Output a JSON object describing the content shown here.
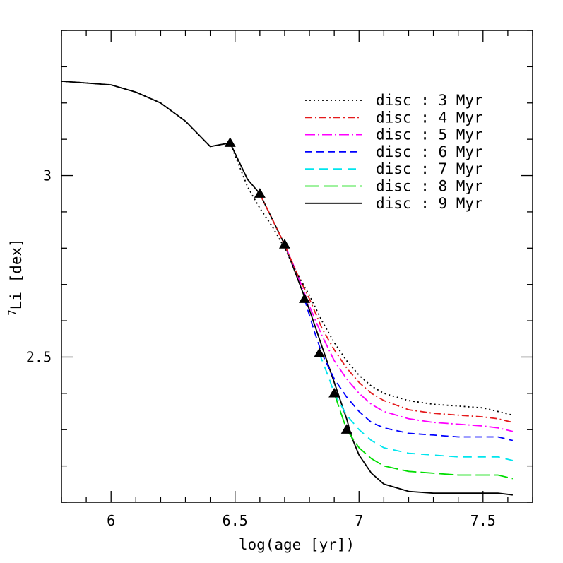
{
  "chart_data": {
    "type": "line",
    "xlabel": "log(age [yr])",
    "ylabel": "7Li [dex]",
    "ylabel_super": "7",
    "ylabel_main": "Li [dex]",
    "xlim": [
      5.8,
      7.7
    ],
    "ylim": [
      2.1,
      3.4
    ],
    "x_ticks": [
      6,
      6.5,
      7,
      7.5
    ],
    "x_tick_labels": [
      "6",
      "6.5",
      "7",
      "7.5"
    ],
    "y_ticks": [
      2.5,
      3
    ],
    "y_tick_labels": [
      "2.5",
      "3"
    ],
    "x_minor_step": 0.1,
    "y_minor_step": 0.1,
    "grid": false,
    "legend": "top-right",
    "series": [
      {
        "name": "disc : 3 Myr",
        "color": "#000000",
        "dash": "2,4",
        "x": [
          5.8,
          6.0,
          6.1,
          6.2,
          6.3,
          6.4,
          6.48,
          6.55,
          6.6,
          6.65,
          6.7,
          6.75,
          6.8,
          6.85,
          6.9,
          6.95,
          7.0,
          7.05,
          7.1,
          7.2,
          7.3,
          7.4,
          7.5,
          7.56,
          7.62
        ],
        "y": [
          3.26,
          3.25,
          3.23,
          3.2,
          3.15,
          3.08,
          3.09,
          2.97,
          2.91,
          2.86,
          2.8,
          2.73,
          2.67,
          2.6,
          2.54,
          2.49,
          2.45,
          2.42,
          2.4,
          2.38,
          2.37,
          2.365,
          2.36,
          2.35,
          2.34
        ]
      },
      {
        "name": "disc : 4 Myr",
        "color": "#e41a1c",
        "dash": "10,4,2,4",
        "x": [
          6.6,
          6.65,
          6.7,
          6.75,
          6.8,
          6.85,
          6.9,
          6.95,
          7.0,
          7.05,
          7.1,
          7.2,
          7.3,
          7.4,
          7.5,
          7.56,
          7.62
        ],
        "y": [
          2.95,
          2.88,
          2.81,
          2.73,
          2.66,
          2.58,
          2.52,
          2.47,
          2.43,
          2.4,
          2.38,
          2.355,
          2.345,
          2.34,
          2.335,
          2.33,
          2.32
        ]
      },
      {
        "name": "disc : 5 Myr",
        "color": "#ff00ff",
        "dash": "14,4,2,4",
        "x": [
          6.7,
          6.75,
          6.8,
          6.85,
          6.9,
          6.95,
          7.0,
          7.05,
          7.1,
          7.2,
          7.3,
          7.4,
          7.5,
          7.56,
          7.62
        ],
        "y": [
          2.81,
          2.73,
          2.64,
          2.56,
          2.49,
          2.44,
          2.4,
          2.37,
          2.35,
          2.33,
          2.32,
          2.315,
          2.31,
          2.305,
          2.295
        ]
      },
      {
        "name": "disc : 6 Myr",
        "color": "#0000ff",
        "dash": "10,6",
        "x": [
          6.78,
          6.82,
          6.85,
          6.9,
          6.95,
          7.0,
          7.05,
          7.1,
          7.2,
          7.3,
          7.4,
          7.5,
          7.56,
          7.62
        ],
        "y": [
          2.66,
          2.57,
          2.51,
          2.44,
          2.39,
          2.35,
          2.32,
          2.305,
          2.29,
          2.285,
          2.28,
          2.28,
          2.28,
          2.27
        ]
      },
      {
        "name": "disc : 7 Myr",
        "color": "#00e5ee",
        "dash": "12,8",
        "x": [
          6.84,
          6.88,
          6.9,
          6.95,
          7.0,
          7.05,
          7.1,
          7.2,
          7.3,
          7.4,
          7.5,
          7.56,
          7.62
        ],
        "y": [
          2.51,
          2.44,
          2.4,
          2.34,
          2.3,
          2.27,
          2.25,
          2.235,
          2.23,
          2.225,
          2.225,
          2.225,
          2.215
        ]
      },
      {
        "name": "disc : 8 Myr",
        "color": "#00dd00",
        "dash": "20,6",
        "x": [
          6.9,
          6.93,
          6.95,
          7.0,
          7.05,
          7.1,
          7.2,
          7.3,
          7.4,
          7.5,
          7.56,
          7.62
        ],
        "y": [
          2.4,
          2.34,
          2.3,
          2.25,
          2.22,
          2.2,
          2.185,
          2.18,
          2.175,
          2.175,
          2.175,
          2.165
        ]
      },
      {
        "name": "disc : 9 Myr",
        "color": "#000000",
        "dash": "",
        "x": [
          5.8,
          6.0,
          6.1,
          6.2,
          6.3,
          6.4,
          6.48,
          6.55,
          6.6,
          6.65,
          6.7,
          6.75,
          6.8,
          6.85,
          6.9,
          6.95,
          6.97,
          7.0,
          7.05,
          7.1,
          7.2,
          7.3,
          7.4,
          7.5,
          7.56,
          7.62
        ],
        "y": [
          3.26,
          3.25,
          3.23,
          3.2,
          3.15,
          3.08,
          3.09,
          2.99,
          2.95,
          2.88,
          2.81,
          2.72,
          2.63,
          2.53,
          2.43,
          2.33,
          2.28,
          2.23,
          2.18,
          2.15,
          2.13,
          2.125,
          2.125,
          2.125,
          2.125,
          2.12
        ]
      }
    ],
    "markers": {
      "shape": "triangle",
      "color": "#000000",
      "x": [
        6.48,
        6.6,
        6.7,
        6.78,
        6.84,
        6.9,
        6.95
      ],
      "y": [
        3.09,
        2.95,
        2.81,
        2.66,
        2.51,
        2.4,
        2.3
      ]
    }
  }
}
